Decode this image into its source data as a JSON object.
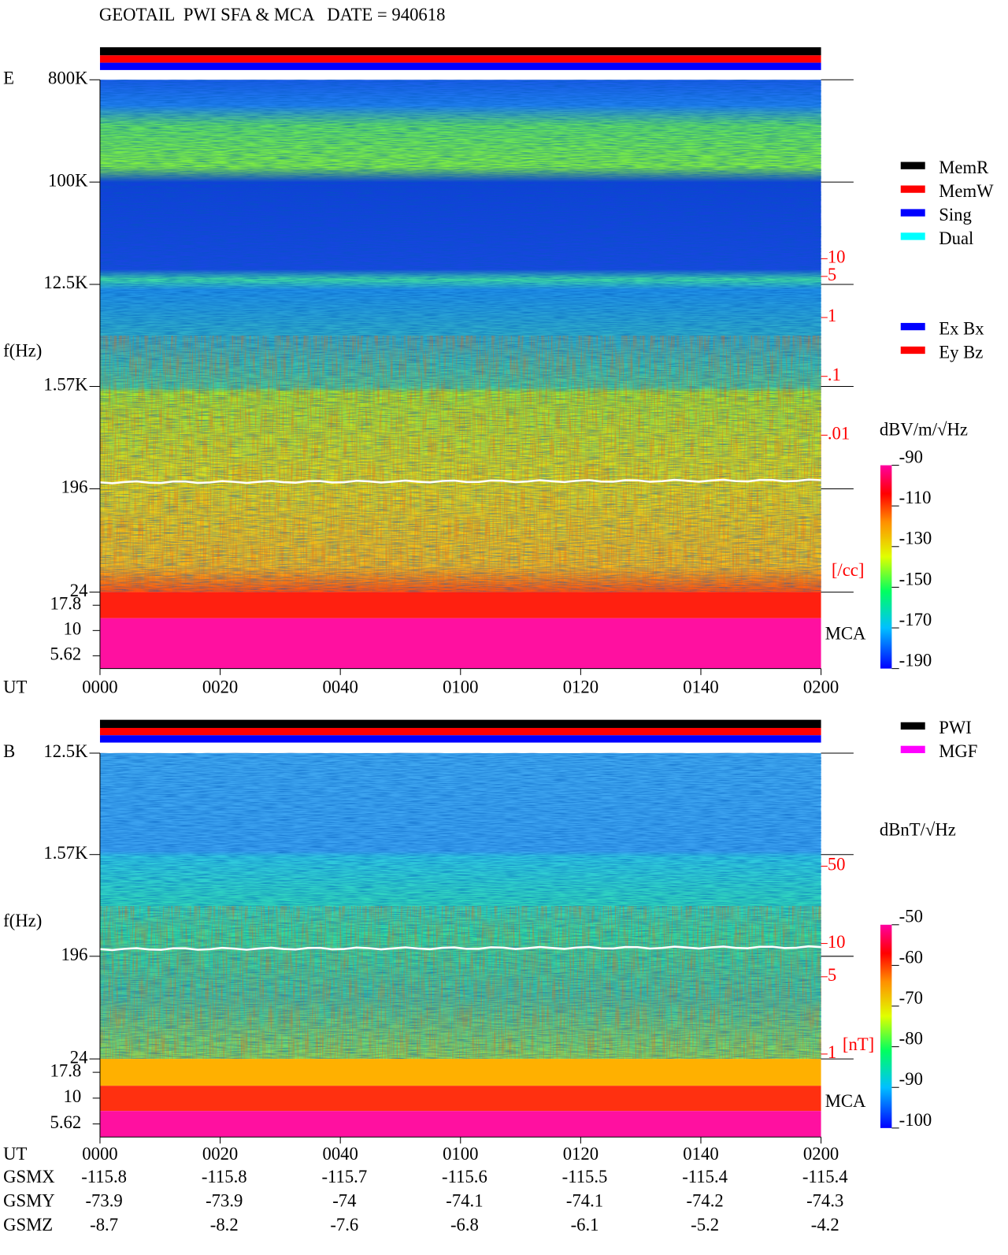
{
  "title": "GEOTAIL  PWI SFA & MCA   DATE = 940618",
  "chart_data": [
    {
      "type": "spectrogram",
      "panel_label": "E",
      "ylabel": "f(Hz)",
      "xlabel": "UT",
      "ylim": [
        24,
        800000
      ],
      "yticks": [
        {
          "value": 800000,
          "label": "800K"
        },
        {
          "value": 100000,
          "label": "100K"
        },
        {
          "value": 12500,
          "label": "12.5K"
        },
        {
          "value": 1570,
          "label": "1.57K"
        },
        196,
        24
      ],
      "mca_label": "MCA",
      "mca_ylim": [
        4.2,
        24
      ],
      "mca_yticks": [
        17.8,
        10,
        5.62
      ],
      "xlim": [
        0,
        120
      ],
      "xticks": [
        {
          "value": 0,
          "label": "0000"
        },
        {
          "value": 20,
          "label": "0020"
        },
        {
          "value": 40,
          "label": "0040"
        },
        {
          "value": 60,
          "label": "0100"
        },
        {
          "value": 80,
          "label": "0120"
        },
        {
          "value": 100,
          "label": "0140"
        },
        {
          "value": 120,
          "label": "0200"
        }
      ],
      "y2lim": [
        0.01,
        10
      ],
      "y2ticks": [
        10,
        5,
        1,
        {
          "value": 0.1,
          "label": ".1"
        },
        {
          "value": 0.01,
          "label": ".01"
        }
      ],
      "y2_unit": "[/cc]",
      "legend": [
        {
          "name": "MemR",
          "color": "#000000"
        },
        {
          "name": "MemW",
          "color": "#ff0000"
        },
        {
          "name": "Sing",
          "color": "#0000ff"
        },
        {
          "name": "Dual",
          "color": "#00ffff"
        }
      ],
      "legend2": [
        {
          "name": "Ex Bx",
          "color": "#0000ff"
        },
        {
          "name": "Ey Bz",
          "color": "#ff0000"
        }
      ],
      "colorbar": {
        "label": "dBV/m/√Hz",
        "lim": [
          -190,
          -90
        ],
        "ticks": [
          -90,
          -110,
          -130,
          -150,
          -170,
          -190
        ]
      }
    },
    {
      "type": "spectrogram",
      "panel_label": "B",
      "ylabel": "f(Hz)",
      "xlabel": "UT",
      "ylim": [
        24,
        12500
      ],
      "yticks": [
        {
          "value": 12500,
          "label": "12.5K"
        },
        {
          "value": 1570,
          "label": "1.57K"
        },
        196,
        24
      ],
      "mca_label": "MCA",
      "mca_ylim": [
        4.2,
        24
      ],
      "mca_yticks": [
        17.8,
        10,
        5.62
      ],
      "xlim": [
        0,
        120
      ],
      "xticks": [
        {
          "value": 0,
          "label": "0000"
        },
        {
          "value": 20,
          "label": "0020"
        },
        {
          "value": 40,
          "label": "0040"
        },
        {
          "value": 60,
          "label": "0100"
        },
        {
          "value": 80,
          "label": "0120"
        },
        {
          "value": 100,
          "label": "0140"
        },
        {
          "value": 120,
          "label": "0200"
        }
      ],
      "y2lim": [
        1,
        50
      ],
      "y2ticks": [
        50,
        10,
        5,
        1
      ],
      "y2_unit": "[nT]",
      "legend": [
        {
          "name": "PWI",
          "color": "#000000"
        },
        {
          "name": "MGF",
          "color": "#ff00ff"
        }
      ],
      "colorbar": {
        "label": "dBnT/√Hz",
        "lim": [
          -100,
          -50
        ],
        "ticks": [
          -50,
          -60,
          -70,
          -80,
          -90,
          -100
        ]
      }
    }
  ],
  "orbit": {
    "rows": [
      {
        "name": "GSMX",
        "values": [
          -115.8,
          -115.8,
          -115.7,
          -115.6,
          -115.5,
          -115.4,
          -115.4
        ]
      },
      {
        "name": "GSMY",
        "values": [
          -73.9,
          -73.9,
          -74.0,
          -74.1,
          -74.1,
          -74.2,
          -74.3
        ]
      },
      {
        "name": "GSMZ",
        "values": [
          -8.7,
          -8.2,
          -7.6,
          -6.8,
          -6.1,
          -5.2,
          -4.2
        ]
      }
    ]
  }
}
